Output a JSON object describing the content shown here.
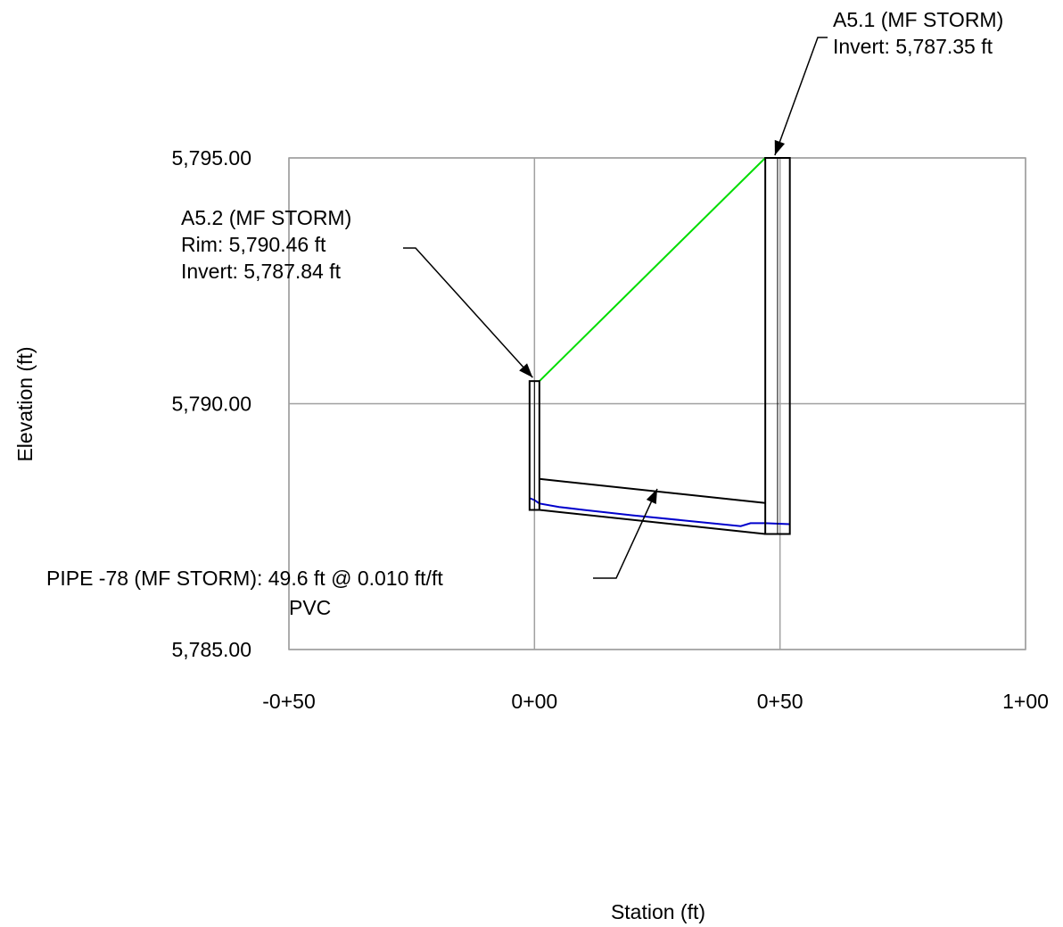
{
  "chart_data": {
    "type": "line",
    "title": "",
    "xlabel": "Station (ft)",
    "ylabel": "Elevation (ft)",
    "xlim": [
      -50,
      100
    ],
    "ylim": [
      5785.0,
      5795.0
    ],
    "x_ticks": [
      {
        "value": -50,
        "label": "-0+50"
      },
      {
        "value": 0,
        "label": "0+00"
      },
      {
        "value": 50,
        "label": "0+50"
      },
      {
        "value": 100,
        "label": "1+00"
      }
    ],
    "y_ticks": [
      {
        "value": 5795.0,
        "label": "5,795.00"
      },
      {
        "value": 5790.0,
        "label": "5,790.00"
      },
      {
        "value": 5785.0,
        "label": "5,785.00"
      }
    ],
    "grid": true,
    "structures": [
      {
        "name": "A5.2 (MF STORM)",
        "label_lines": [
          "A5.2 (MF STORM)",
          "Rim: 5,790.46 ft",
          "Invert: 5,787.84 ft"
        ],
        "station_left": -1.0,
        "station_right": 1.0,
        "rim": 5790.46,
        "bottom": 5787.84
      },
      {
        "name": "A5.1 (MF STORM)",
        "label_lines": [
          "A5.1 (MF STORM)",
          "Invert: 5,787.35 ft"
        ],
        "station_left": 47.0,
        "station_right": 52.0,
        "rim": 5795.0,
        "bottom": 5787.35
      }
    ],
    "pipe": {
      "label_lines": [
        "PIPE -78 (MF STORM): 49.6 ft @ 0.010 ft/ft",
        "PVC"
      ],
      "x_start": 1.0,
      "x_end": 47.0,
      "invert_start": 5787.84,
      "invert_end": 5787.35,
      "crown_start": 5788.47,
      "crown_end": 5787.98
    },
    "series": [
      {
        "name": "",
        "color": "#00dd00",
        "x": [
          1.0,
          47.0
        ],
        "y": [
          5790.46,
          5795.0
        ]
      },
      {
        "name": "",
        "color": "#0000cc",
        "x": [
          -1.0,
          0.0,
          1.0,
          5.0,
          10.0,
          20.0,
          30.0,
          40.0,
          42.0,
          44.0,
          47.0,
          52.0
        ],
        "y": [
          5788.08,
          5788.04,
          5787.97,
          5787.9,
          5787.84,
          5787.73,
          5787.63,
          5787.53,
          5787.51,
          5787.57,
          5787.57,
          5787.55
        ]
      }
    ]
  }
}
